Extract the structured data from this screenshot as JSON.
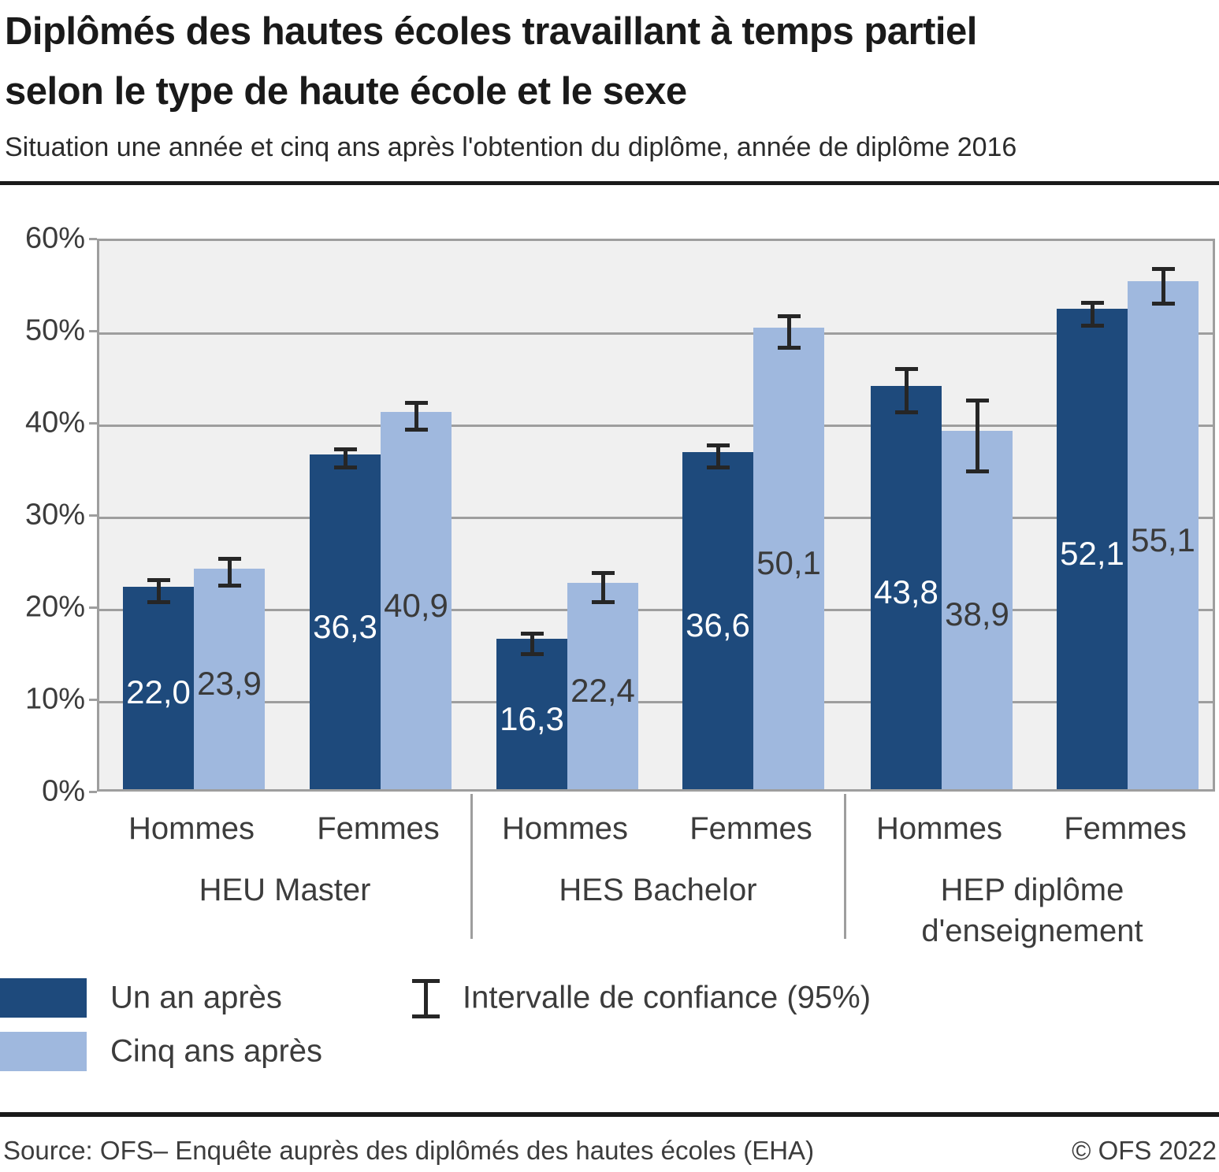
{
  "header": {
    "title_line1": "Diplômés des hautes écoles travaillant à temps partiel",
    "title_line2": "selon le type de haute école et le sexe",
    "subtitle": "Situation une année et cinq ans après l'obtention du diplôme, année de diplôme 2016"
  },
  "chart_data": {
    "type": "bar",
    "unit": "percent",
    "ylim": [
      0,
      60
    ],
    "grid": true,
    "y_ticks": [
      {
        "value": 0,
        "label": "0%"
      },
      {
        "value": 10,
        "label": "10%"
      },
      {
        "value": 20,
        "label": "20%"
      },
      {
        "value": 30,
        "label": "30%"
      },
      {
        "value": 40,
        "label": "40%"
      },
      {
        "value": 50,
        "label": "50%"
      },
      {
        "value": 60,
        "label": "60%"
      }
    ],
    "series": [
      {
        "name": "Un an après",
        "color": "#1e4a7c",
        "value_label_color": "#ffffff"
      },
      {
        "name": "Cinq ans après",
        "color": "#9fb8de",
        "value_label_color": "#3a3a3a"
      }
    ],
    "error_bar_legend": "Intervalle de confiance (95%)",
    "error_bar_color": "#262626",
    "groups": [
      {
        "label_lines": [
          "HEU Master"
        ],
        "subgroups": [
          {
            "label": "Hommes",
            "bars": [
              {
                "series": "Un an après",
                "value": 22.0,
                "label": "22,0",
                "ci": [
                  20.8,
                  23.2
                ]
              },
              {
                "series": "Cinq ans après",
                "value": 23.9,
                "label": "23,9",
                "ci": [
                  22.6,
                  25.5
                ]
              }
            ]
          },
          {
            "label": "Femmes",
            "bars": [
              {
                "series": "Un an après",
                "value": 36.3,
                "label": "36,3",
                "ci": [
                  35.4,
                  37.4
                ]
              },
              {
                "series": "Cinq ans après",
                "value": 40.9,
                "label": "40,9",
                "ci": [
                  39.5,
                  42.4
                ]
              }
            ]
          }
        ]
      },
      {
        "label_lines": [
          "HES Bachelor"
        ],
        "subgroups": [
          {
            "label": "Hommes",
            "bars": [
              {
                "series": "Un an après",
                "value": 16.3,
                "label": "16,3",
                "ci": [
                  15.2,
                  17.4
                ]
              },
              {
                "series": "Cinq ans après",
                "value": 22.4,
                "label": "22,4",
                "ci": [
                  20.8,
                  24.0
                ]
              }
            ]
          },
          {
            "label": "Femmes",
            "bars": [
              {
                "series": "Un an après",
                "value": 36.6,
                "label": "36,6",
                "ci": [
                  35.4,
                  37.8
                ]
              },
              {
                "series": "Cinq ans après",
                "value": 50.1,
                "label": "50,1",
                "ci": [
                  48.4,
                  51.8
                ]
              }
            ]
          }
        ]
      },
      {
        "label_lines": [
          "HEP diplôme",
          "d'enseignement"
        ],
        "subgroups": [
          {
            "label": "Hommes",
            "bars": [
              {
                "series": "Un an après",
                "value": 43.8,
                "label": "43,8",
                "ci": [
                  41.4,
                  46.1
                ]
              },
              {
                "series": "Cinq ans après",
                "value": 38.9,
                "label": "38,9",
                "ci": [
                  35.0,
                  42.7
                ]
              }
            ]
          },
          {
            "label": "Femmes",
            "bars": [
              {
                "series": "Un an après",
                "value": 52.1,
                "label": "52,1",
                "ci": [
                  50.8,
                  53.3
                ]
              },
              {
                "series": "Cinq ans après",
                "value": 55.1,
                "label": "55,1",
                "ci": [
                  53.2,
                  57.0
                ]
              }
            ]
          }
        ]
      }
    ]
  },
  "footer": {
    "source": "Source: OFS– Enquête auprès des diplômés des hautes écoles (EHA)",
    "copyright": "© OFS 2022"
  }
}
